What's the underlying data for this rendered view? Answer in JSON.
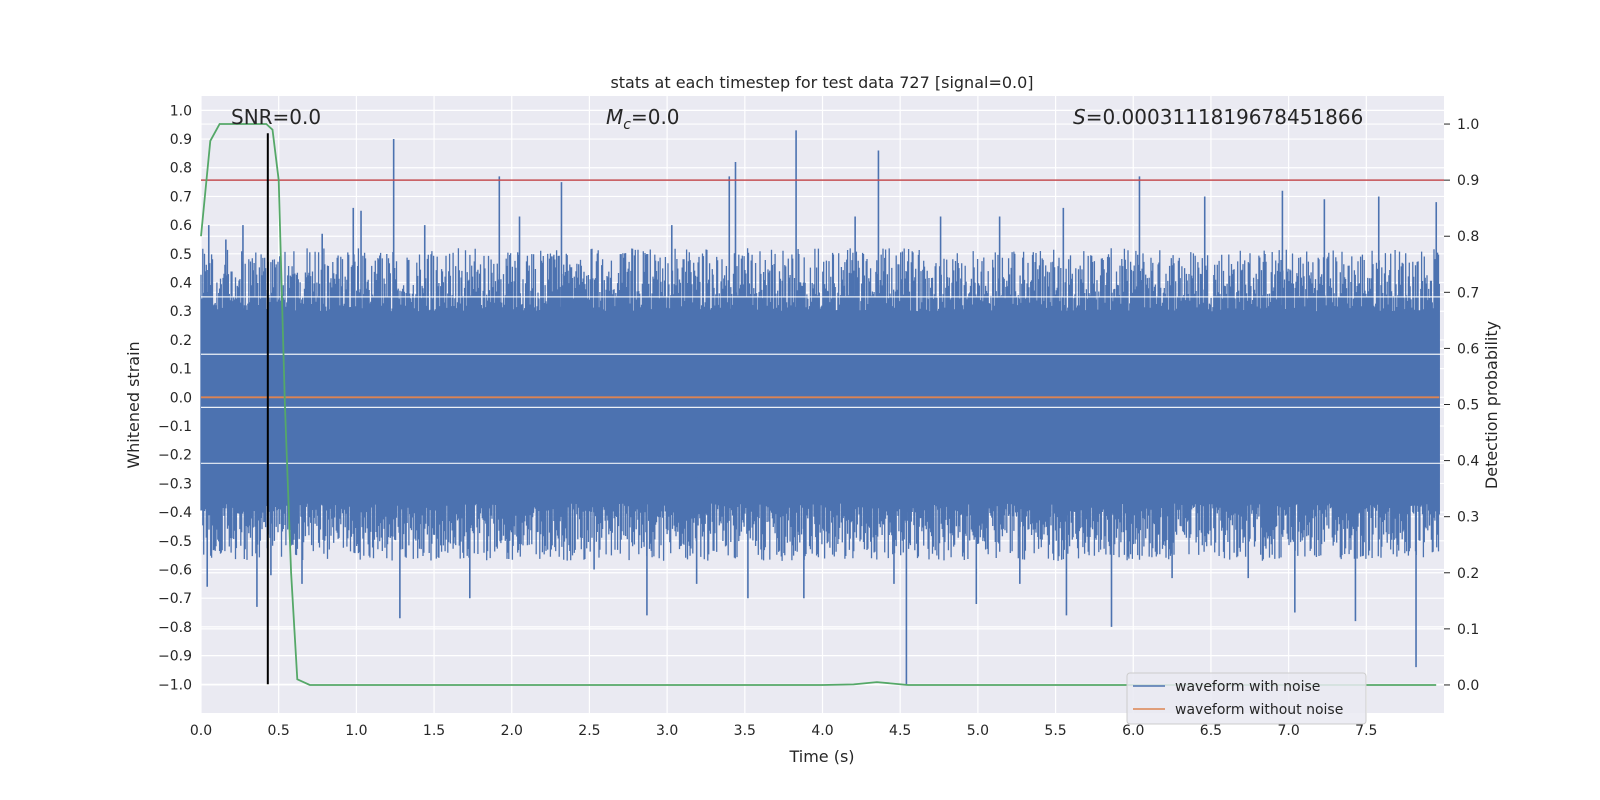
{
  "chart_data": {
    "type": "line",
    "title": "stats at each timestep for test data 727 [signal=0.0]",
    "xlabel": "Time (s)",
    "ylabel": "Whitened strain",
    "y2label": "Detection probability",
    "xlim": [
      0.0,
      8.0
    ],
    "ylim": [
      -1.1,
      1.05
    ],
    "y2lim": [
      -0.05,
      1.05
    ],
    "x_ticks": [
      0.0,
      0.5,
      1.0,
      1.5,
      2.0,
      2.5,
      3.0,
      3.5,
      4.0,
      4.5,
      5.0,
      5.5,
      6.0,
      6.5,
      7.0,
      7.5
    ],
    "x_tick_labels": [
      "0.0",
      "0.5",
      "1.0",
      "1.5",
      "2.0",
      "2.5",
      "3.0",
      "3.5",
      "4.0",
      "4.5",
      "5.0",
      "5.5",
      "6.0",
      "6.5",
      "7.0",
      "7.5"
    ],
    "y_ticks": [
      1.0,
      0.9,
      0.8,
      0.7,
      0.6,
      0.5,
      0.4,
      0.3,
      0.2,
      0.1,
      0.0,
      -0.1,
      -0.2,
      -0.3,
      -0.4,
      -0.5,
      -0.6,
      -0.7,
      -0.8,
      -0.9,
      -1.0
    ],
    "y_tick_labels": [
      "1.0",
      "0.9",
      "0.8",
      "0.7",
      "0.6",
      "0.5",
      "0.4",
      "0.3",
      "0.2",
      "0.1",
      "0.0",
      "−0.1",
      "−0.2",
      "−0.3",
      "−0.4",
      "−0.5",
      "−0.6",
      "−0.7",
      "−0.8",
      "−0.9",
      "−1.0"
    ],
    "y2_ticks": [
      1.0,
      0.9,
      0.8,
      0.7,
      0.6,
      0.5,
      0.4,
      0.3,
      0.2,
      0.1,
      0.0
    ],
    "y2_tick_labels": [
      "1.0",
      "0.9",
      "0.8",
      "0.7",
      "0.6",
      "0.5",
      "0.4",
      "0.3",
      "0.2",
      "0.1",
      "0.0"
    ],
    "grid": true,
    "annotations": {
      "snr": "SNR=0.0",
      "mc_symbol": "M",
      "mc_sub": "c",
      "mc_value": "=0.0",
      "s_symbol": "S",
      "s_value": "=0.0003111819678451866"
    },
    "threshold_line": {
      "axis": "y2",
      "value": 0.9,
      "color": "#c44e52"
    },
    "marker_vline": {
      "x": 0.43,
      "ymin": -1.0,
      "ymax": 0.92,
      "color": "#000000"
    },
    "series": [
      {
        "name": "waveform with noise",
        "color": "#4c72b0",
        "axis": "y",
        "description_range": [
          -1.0,
          0.93
        ],
        "envelope_hi": 0.35,
        "envelope_lo": -0.42,
        "spikes": [
          [
            0.04,
            -0.66
          ],
          [
            0.05,
            0.6
          ],
          [
            0.16,
            0.55
          ],
          [
            0.27,
            0.6
          ],
          [
            0.36,
            -0.73
          ],
          [
            0.43,
            0.64
          ],
          [
            0.45,
            -0.62
          ],
          [
            0.65,
            -0.65
          ],
          [
            0.78,
            0.57
          ],
          [
            0.98,
            0.66
          ],
          [
            1.03,
            0.65
          ],
          [
            1.24,
            0.9
          ],
          [
            1.28,
            -0.77
          ],
          [
            1.44,
            0.6
          ],
          [
            1.73,
            -0.7
          ],
          [
            1.92,
            0.77
          ],
          [
            2.05,
            0.63
          ],
          [
            2.32,
            0.75
          ],
          [
            2.53,
            -0.6
          ],
          [
            2.87,
            -0.76
          ],
          [
            3.03,
            0.6
          ],
          [
            3.19,
            -0.65
          ],
          [
            3.4,
            0.77
          ],
          [
            3.44,
            0.82
          ],
          [
            3.52,
            -0.7
          ],
          [
            3.83,
            0.93
          ],
          [
            3.88,
            -0.7
          ],
          [
            4.21,
            0.63
          ],
          [
            4.36,
            0.86
          ],
          [
            4.46,
            -0.65
          ],
          [
            4.54,
            -1.0
          ],
          [
            4.76,
            0.63
          ],
          [
            4.99,
            -0.72
          ],
          [
            5.14,
            0.63
          ],
          [
            5.27,
            -0.65
          ],
          [
            5.55,
            0.66
          ],
          [
            5.57,
            -0.76
          ],
          [
            5.86,
            -0.8
          ],
          [
            6.04,
            0.77
          ],
          [
            6.25,
            -0.63
          ],
          [
            6.46,
            0.7
          ],
          [
            6.74,
            -0.63
          ],
          [
            6.96,
            0.72
          ],
          [
            7.04,
            -0.75
          ],
          [
            7.23,
            0.69
          ],
          [
            7.43,
            -0.78
          ],
          [
            7.58,
            0.7
          ],
          [
            7.82,
            -0.94
          ],
          [
            7.95,
            0.68
          ]
        ]
      },
      {
        "name": "waveform without noise",
        "color": "#dd8452",
        "axis": "y",
        "x": [
          0.0,
          8.0
        ],
        "y": [
          0.0,
          0.0
        ]
      },
      {
        "name": "detection probability",
        "color": "#55a868",
        "axis": "y2",
        "x": [
          0.0,
          0.06,
          0.12,
          0.18,
          0.24,
          0.3,
          0.36,
          0.42,
          0.46,
          0.5,
          0.54,
          0.58,
          0.62,
          0.7,
          1.0,
          2.0,
          3.0,
          4.0,
          4.2,
          4.35,
          4.55,
          5.0,
          6.0,
          7.0,
          7.95
        ],
        "y": [
          0.8,
          0.97,
          1.0,
          1.0,
          1.0,
          1.0,
          1.0,
          1.0,
          0.99,
          0.9,
          0.5,
          0.2,
          0.01,
          0.0,
          0.0,
          0.0,
          0.0,
          0.0,
          0.001,
          0.005,
          0.0,
          0.0,
          0.0,
          0.0,
          0.0
        ]
      }
    ],
    "legend": {
      "position": "lower-right",
      "entries": [
        {
          "label": "waveform with noise",
          "color": "#4c72b0"
        },
        {
          "label": "waveform without noise",
          "color": "#dd8452"
        }
      ]
    },
    "colors": {
      "plot_bg": "#eaeaf2",
      "grid": "#ffffff",
      "text": "#262626"
    }
  }
}
